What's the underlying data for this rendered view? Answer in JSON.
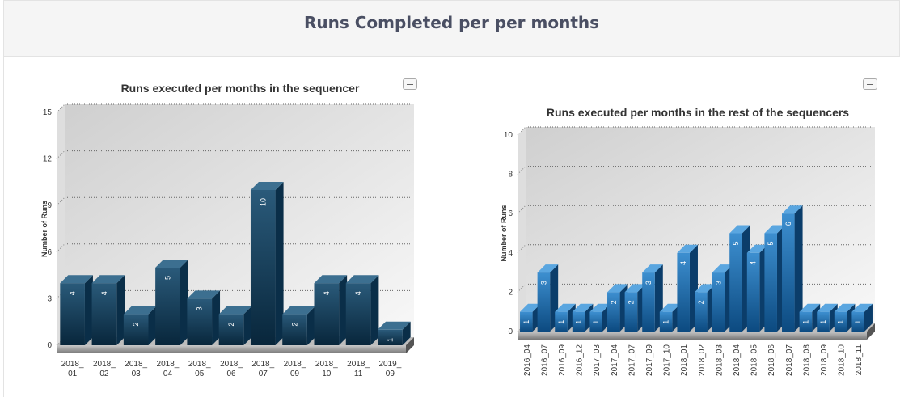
{
  "page": {
    "title": "Runs Completed per per months"
  },
  "chart_data": [
    {
      "type": "bar",
      "title": "Runs executed per months in the sequencer",
      "ylabel": "Number of Runs",
      "xlabel": "",
      "ylim": [
        0,
        15
      ],
      "yticks": [
        0,
        3,
        6,
        9,
        12,
        15
      ],
      "categories": [
        "2018_01",
        "2018_02",
        "2018_03",
        "2018_04",
        "2018_05",
        "2018_06",
        "2018_07",
        "2018_09",
        "2018_10",
        "2018_11",
        "2019_09"
      ],
      "values": [
        4,
        4,
        2,
        5,
        3,
        2,
        10,
        2,
        4,
        4,
        1
      ],
      "colors": {
        "bar_top": "#2a5a7a",
        "bar_bottom": "#08263b",
        "bar_side": "#0a2e48",
        "bar_cap": "#3c6f90"
      },
      "grid": true,
      "legend": "none",
      "style": "3d"
    },
    {
      "type": "bar",
      "title": "Runs executed per months in the rest of the sequencers",
      "ylabel": "Number of Runs",
      "xlabel": "",
      "ylim": [
        0,
        10
      ],
      "yticks": [
        0,
        2,
        4,
        6,
        8,
        10
      ],
      "categories": [
        "2016_04",
        "2016_07",
        "2016_09",
        "2016_12",
        "2017_03",
        "2017_04",
        "2017_07",
        "2017_09",
        "2017_10",
        "2018_01",
        "2018_02",
        "2018_03",
        "2018_04",
        "2018_05",
        "2018_06",
        "2018_07",
        "2018_08",
        "2018_09",
        "2018_10",
        "2018_11"
      ],
      "values": [
        1,
        3,
        1,
        1,
        1,
        2,
        2,
        3,
        1,
        4,
        2,
        3,
        5,
        4,
        5,
        6,
        1,
        1,
        1,
        1
      ],
      "colors": {
        "bar_top": "#3d8fd0",
        "bar_bottom": "#0c4a80",
        "bar_side": "#0b3d6a",
        "bar_cap": "#5aa6e0"
      },
      "grid": true,
      "legend": "none",
      "style": "3d"
    }
  ]
}
